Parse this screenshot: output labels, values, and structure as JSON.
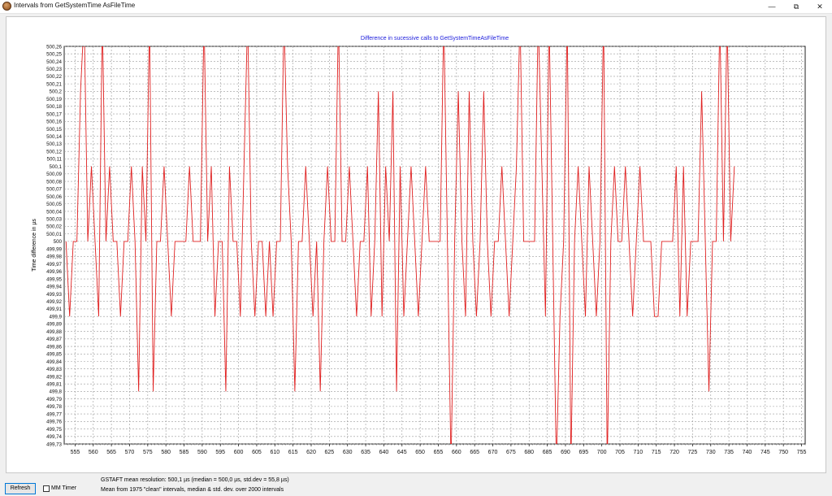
{
  "window": {
    "title": "Intervals from GetSystemTime AsFileTime",
    "minimize_glyph": "—",
    "maximize_glyph": "⧉",
    "close_glyph": "✕"
  },
  "bottom": {
    "refresh_label": "Refresh",
    "mm_timer_label": "MM Timer",
    "mm_timer_checked": false,
    "stats_line1": "GSTAFT mean resolution: 500,1 µs  (median = 500,0 µs, std.dev = 55,8 µs)",
    "stats_line2": "Mean from 1975 \"clean\" intervals, median & std. dev. over 2000 intervals"
  },
  "colors": {
    "line": "#e02020",
    "title": "#1a1adb",
    "grid": "#9a9a9a"
  },
  "chart_data": {
    "type": "line",
    "title": "Difference in sucessive calls to GetSystemTimeAsFileTime",
    "xlabel": "",
    "ylabel": "Time difference in µs",
    "xlim": [
      552,
      756
    ],
    "ylim": [
      499.73,
      500.26
    ],
    "grid": true,
    "legend": "none",
    "x_ticks": [
      555,
      560,
      565,
      570,
      575,
      580,
      585,
      590,
      595,
      600,
      605,
      610,
      615,
      620,
      625,
      630,
      635,
      640,
      645,
      650,
      655,
      660,
      665,
      670,
      675,
      680,
      685,
      690,
      695,
      700,
      705,
      710,
      715,
      720,
      725,
      730,
      735,
      740,
      745,
      750,
      755
    ],
    "y_tick_labels": [
      "500,26",
      "500,25",
      "500,24",
      "500,23",
      "500,22",
      "500,21",
      "500,2",
      "500,19",
      "500,18",
      "500,17",
      "500,16",
      "500,15",
      "500,14",
      "500,13",
      "500,12",
      "500,11",
      "500,1",
      "500,09",
      "500,08",
      "500,07",
      "500,06",
      "500,05",
      "500,04",
      "500,03",
      "500,02",
      "500,01",
      "500",
      "499,99",
      "499,98",
      "499,97",
      "499,96",
      "499,95",
      "499,94",
      "499,93",
      "499,92",
      "499,91",
      "499,9",
      "499,89",
      "499,88",
      "499,87",
      "499,86",
      "499,85",
      "499,84",
      "499,83",
      "499,82",
      "499,81",
      "499,8",
      "499,79",
      "499,78",
      "499,77",
      "499,76",
      "499,75",
      "499,74",
      "499,73"
    ],
    "series": [
      {
        "values": [
          500.0,
          499.9,
          500.0,
          500.0,
          500.2,
          500.3,
          500.0,
          500.1,
          500.0,
          499.9,
          500.3,
          500.0,
          500.1,
          500.0,
          500.0,
          499.9,
          500.0,
          500.0,
          500.1,
          500.0,
          499.8,
          500.1,
          500.0,
          500.3,
          499.8,
          500.0,
          500.0,
          500.1,
          500.0,
          499.9,
          500.0,
          500.0,
          500.0,
          500.0,
          500.1,
          500.0,
          500.0,
          500.0,
          500.3,
          500.0,
          500.1,
          499.9,
          500.0,
          500.0,
          499.8,
          500.1,
          500.0,
          500.0,
          499.9,
          500.1,
          500.3,
          500.0,
          499.9,
          500.0,
          500.0,
          499.9,
          500.0,
          499.9,
          500.0,
          500.0,
          500.3,
          500.1,
          500.0,
          499.8,
          500.0,
          500.0,
          500.1,
          500.0,
          499.9,
          500.0,
          499.8,
          500.0,
          500.1,
          500.0,
          500.0,
          500.3,
          500.0,
          500.0,
          500.1,
          500.0,
          499.9,
          500.0,
          500.0,
          500.1,
          499.9,
          500.0,
          500.2,
          499.9,
          500.1,
          500.0,
          500.2,
          499.8,
          500.1,
          499.9,
          500.0,
          500.1,
          500.0,
          499.9,
          500.0,
          500.1,
          500.0,
          500.0,
          500.0,
          500.0,
          500.3,
          500.0,
          499.7,
          500.0,
          500.2,
          500.0,
          499.9,
          500.2,
          500.0,
          499.9,
          500.0,
          500.2,
          500.0,
          499.9,
          500.0,
          500.0,
          500.1,
          500.0,
          499.9,
          500.0,
          500.1,
          500.3,
          500.0,
          500.0,
          500.0,
          500.0,
          500.3,
          500.1,
          499.9,
          500.3,
          500.0,
          499.7,
          499.9,
          500.0,
          500.3,
          499.7,
          500.0,
          500.1,
          500.0,
          499.9,
          500.1,
          500.0,
          499.9,
          500.0,
          500.3,
          499.7,
          500.0,
          500.1,
          500.0,
          500.0,
          500.1,
          500.0,
          499.9,
          500.0,
          500.1,
          500.0,
          500.0,
          500.0,
          499.9,
          499.9,
          500.0,
          500.0,
          500.0,
          500.0,
          500.1,
          499.9,
          500.1,
          499.9,
          500.0,
          500.0,
          500.0,
          500.2,
          500.0,
          499.8,
          500.0,
          500.0,
          500.3,
          500.0,
          500.3,
          500.0,
          500.1
        ],
        "x_start": 552.5,
        "x_step": 1.0
      }
    ]
  }
}
